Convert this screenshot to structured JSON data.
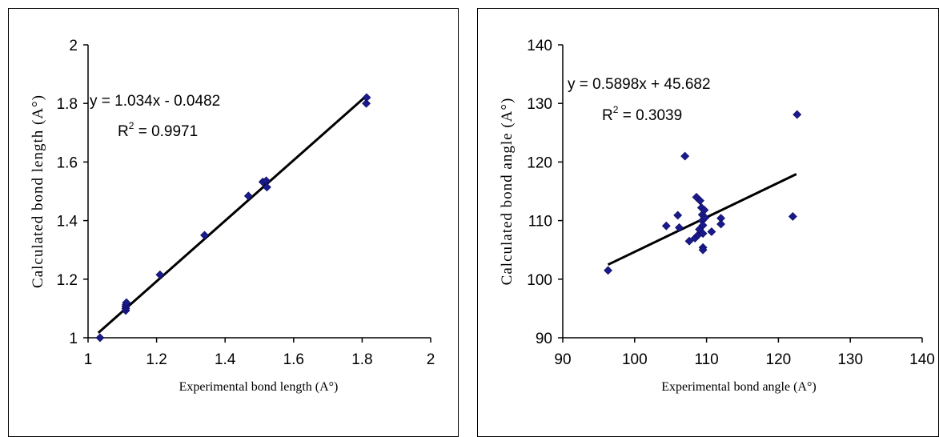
{
  "chart_data": [
    {
      "type": "scatter",
      "xlabel": "Experimental bond length (A°)",
      "ylabel": "Calculated bond length (A°)",
      "xlim": [
        1,
        2
      ],
      "ylim": [
        1,
        2
      ],
      "xticks": [
        "1",
        "1.2",
        "1.4",
        "1.6",
        "1.8",
        "2"
      ],
      "yticks": [
        "1",
        "1.2",
        "1.4",
        "1.6",
        "1.8",
        "2"
      ],
      "grid": false,
      "marker_color": "#1a1a8c",
      "trendline": {
        "slope": 1.034,
        "intercept": -0.0482,
        "x_range": [
          1.03,
          1.815
        ]
      },
      "equation": "y = 1.034x - 0.0482",
      "r2_label": "R",
      "r2_sup": "2",
      "r2_value": " = 0.9971",
      "points": [
        {
          "x": 1.035,
          "y": 1.0
        },
        {
          "x": 1.11,
          "y": 1.093
        },
        {
          "x": 1.11,
          "y": 1.1
        },
        {
          "x": 1.11,
          "y": 1.107
        },
        {
          "x": 1.111,
          "y": 1.113
        },
        {
          "x": 1.112,
          "y": 1.12
        },
        {
          "x": 1.21,
          "y": 1.215
        },
        {
          "x": 1.34,
          "y": 1.35
        },
        {
          "x": 1.468,
          "y": 1.484
        },
        {
          "x": 1.51,
          "y": 1.532
        },
        {
          "x": 1.52,
          "y": 1.536
        },
        {
          "x": 1.522,
          "y": 1.514
        },
        {
          "x": 1.812,
          "y": 1.8
        },
        {
          "x": 1.813,
          "y": 1.82
        }
      ]
    },
    {
      "type": "scatter",
      "xlabel": "Experimental bond angle (A°)",
      "ylabel": "Calculated bond angle (A°)",
      "xlim": [
        90,
        140
      ],
      "ylim": [
        90,
        140
      ],
      "xticks": [
        "90",
        "100",
        "110",
        "120",
        "130",
        "140"
      ],
      "yticks": [
        "90",
        "100",
        "110",
        "120",
        "130",
        "140"
      ],
      "grid": false,
      "marker_color": "#1a1a8c",
      "trendline": {
        "slope": 0.5898,
        "intercept": 45.682,
        "x_range": [
          96.3,
          122.5
        ]
      },
      "equation": "y = 0.5898x + 45.682",
      "r2_label": "R",
      "r2_sup": "2",
      "r2_value": " = 0.3039",
      "points": [
        {
          "x": 96.3,
          "y": 101.5
        },
        {
          "x": 104.4,
          "y": 109.1
        },
        {
          "x": 106.0,
          "y": 110.9
        },
        {
          "x": 106.2,
          "y": 108.8
        },
        {
          "x": 107.0,
          "y": 121.0
        },
        {
          "x": 107.6,
          "y": 106.5
        },
        {
          "x": 108.4,
          "y": 107.0
        },
        {
          "x": 108.6,
          "y": 114.0
        },
        {
          "x": 108.8,
          "y": 107.5
        },
        {
          "x": 109.0,
          "y": 108.5
        },
        {
          "x": 109.1,
          "y": 113.4
        },
        {
          "x": 109.3,
          "y": 112.2
        },
        {
          "x": 109.4,
          "y": 111.0
        },
        {
          "x": 109.4,
          "y": 110.0
        },
        {
          "x": 109.5,
          "y": 109.2
        },
        {
          "x": 109.5,
          "y": 107.8
        },
        {
          "x": 109.5,
          "y": 105.4
        },
        {
          "x": 109.5,
          "y": 105.0
        },
        {
          "x": 109.7,
          "y": 111.8
        },
        {
          "x": 109.8,
          "y": 110.5
        },
        {
          "x": 110.7,
          "y": 108.1
        },
        {
          "x": 112.0,
          "y": 110.4
        },
        {
          "x": 112.0,
          "y": 109.4
        },
        {
          "x": 122.0,
          "y": 110.7
        },
        {
          "x": 122.6,
          "y": 128.1
        }
      ]
    }
  ]
}
